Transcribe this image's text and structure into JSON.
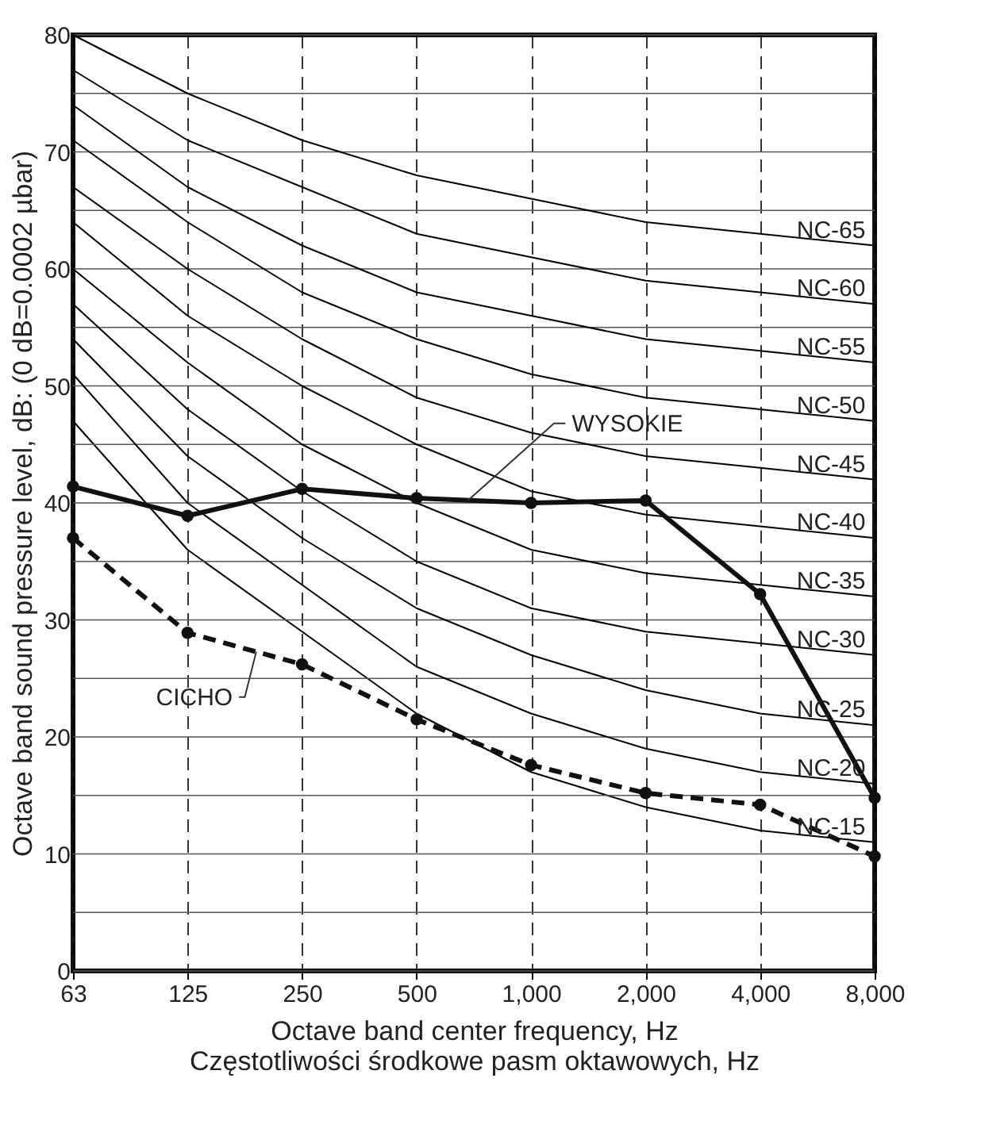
{
  "chart_data": {
    "type": "line",
    "xlabel": "Octave band center frequency, Hz",
    "ylabel": "Octave band sound pressure level, dB: (0 dB=0.0002 µbar)",
    "annotations": [
      "Częstotliwości środkowe pasm oktawowych, Hz"
    ],
    "categories": [
      "63",
      "125",
      "250",
      "500",
      "1,000",
      "2,000",
      "4,000",
      "8,000"
    ],
    "ylim": [
      0,
      80
    ],
    "yticks": [
      0,
      {
        "value": 5,
        "label": null
      },
      10,
      {
        "value": 15,
        "label": null
      },
      20,
      {
        "value": 25,
        "label": null
      },
      30,
      {
        "value": 35,
        "label": null
      },
      40,
      {
        "value": 45,
        "label": null
      },
      50,
      {
        "value": 55,
        "label": null
      },
      60,
      {
        "value": 65,
        "label": null
      },
      70,
      {
        "value": 75,
        "label": null
      },
      80
    ],
    "grid": true,
    "series": [
      {
        "name": "NC-15",
        "color": "#000000",
        "line_style": "solid",
        "marker": "none",
        "values": [
          47,
          36,
          29,
          22,
          17,
          14,
          12,
          11
        ]
      },
      {
        "name": "NC-20",
        "color": "#000000",
        "line_style": "solid",
        "marker": "none",
        "values": [
          51,
          40,
          33,
          26,
          22,
          19,
          17,
          16
        ]
      },
      {
        "name": "NC-25",
        "color": "#000000",
        "line_style": "solid",
        "marker": "none",
        "values": [
          54,
          44,
          37,
          31,
          27,
          24,
          22,
          21
        ]
      },
      {
        "name": "NC-30",
        "color": "#000000",
        "line_style": "solid",
        "marker": "none",
        "values": [
          57,
          48,
          41,
          35,
          31,
          29,
          28,
          27
        ]
      },
      {
        "name": "NC-35",
        "color": "#000000",
        "line_style": "solid",
        "marker": "none",
        "values": [
          60,
          52,
          45,
          40,
          36,
          34,
          33,
          32
        ]
      },
      {
        "name": "NC-40",
        "color": "#000000",
        "line_style": "solid",
        "marker": "none",
        "values": [
          64,
          56,
          50,
          45,
          41,
          39,
          38,
          37
        ]
      },
      {
        "name": "NC-45",
        "color": "#000000",
        "line_style": "solid",
        "marker": "none",
        "values": [
          67,
          60,
          54,
          49,
          46,
          44,
          43,
          42
        ]
      },
      {
        "name": "NC-50",
        "color": "#000000",
        "line_style": "solid",
        "marker": "none",
        "values": [
          71,
          64,
          58,
          54,
          51,
          49,
          48,
          47
        ]
      },
      {
        "name": "NC-55",
        "color": "#000000",
        "line_style": "solid",
        "marker": "none",
        "values": [
          74,
          67,
          62,
          58,
          56,
          54,
          53,
          52
        ]
      },
      {
        "name": "NC-60",
        "color": "#000000",
        "line_style": "solid",
        "marker": "none",
        "values": [
          77,
          71,
          67,
          63,
          61,
          59,
          58,
          57
        ]
      },
      {
        "name": "NC-65",
        "color": "#000000",
        "line_style": "solid",
        "marker": "none",
        "values": [
          80,
          75,
          71,
          68,
          66,
          64,
          63,
          62
        ]
      },
      {
        "name": "WYSOKIE",
        "color": "#111111",
        "line_style": "solid",
        "marker": "circle",
        "values": [
          41.4,
          38.9,
          41.2,
          40.4,
          40.0,
          40.2,
          32.2,
          14.8
        ]
      },
      {
        "name": "CICHO",
        "color": "#111111",
        "line_style": "dashed",
        "marker": "circle",
        "values": [
          37.0,
          28.9,
          26.2,
          21.5,
          17.6,
          15.2,
          14.2,
          9.8
        ]
      }
    ]
  }
}
